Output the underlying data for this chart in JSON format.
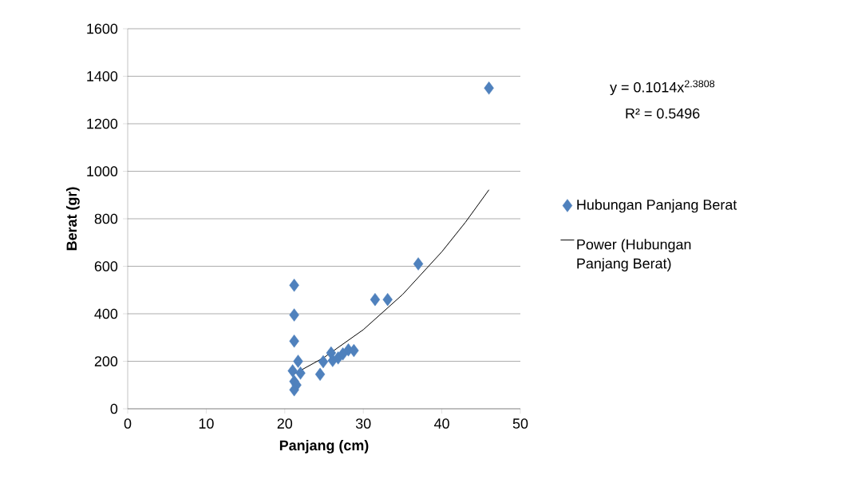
{
  "chart_data": {
    "type": "scatter",
    "xlabel": "Panjang (cm)",
    "ylabel": "Berat (gr)",
    "xlim": [
      0,
      50
    ],
    "xticks": [
      0,
      10,
      20,
      30,
      40,
      50
    ],
    "ylim": [
      0,
      1600
    ],
    "yticks": [
      0,
      200,
      400,
      600,
      800,
      1000,
      1200,
      1400,
      1600
    ],
    "grid": "y",
    "legend": "right",
    "marker": "diamond",
    "annotations": [
      "y = 0.1014x$^{2.3808}$",
      "R² = 0.5496"
    ],
    "series": [
      {
        "name": "Hubungan Panjang Berat",
        "color": "#4f81bd",
        "x": [
          21.2,
          21.2,
          21.2,
          21.7,
          21.0,
          22.0,
          21.2,
          21.5,
          21.2,
          24.5,
          24.9,
          25.9,
          26.1,
          26.8,
          27.4,
          28.1,
          28.8,
          31.5,
          33.1,
          37.0,
          46.0
        ],
        "values": [
          520,
          395,
          285,
          200,
          160,
          150,
          115,
          100,
          80,
          145,
          198,
          235,
          203,
          214,
          231,
          248,
          245,
          460,
          460,
          610,
          1350
        ]
      },
      {
        "name": "Power (Hubungan Panjang Berat)",
        "type": "line",
        "marker": "none",
        "color": "#000000",
        "x": [
          21,
          25,
          30,
          35,
          40,
          43,
          46
        ],
        "values": [
          143,
          216,
          333,
          481,
          661,
          785,
          922
        ]
      }
    ]
  }
}
